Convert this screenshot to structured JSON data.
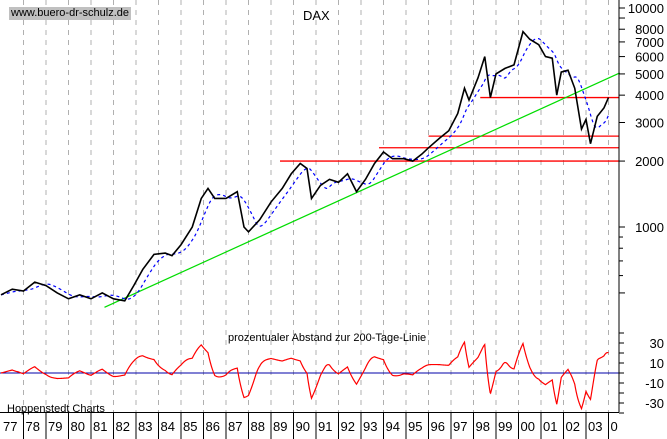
{
  "watermark": "www.buero-dr-schulz.de",
  "chart_data": [
    {
      "type": "line",
      "title": "DAX",
      "y_scale": "log",
      "ylim": [
        380,
        11000
      ],
      "xlim": [
        1977,
        2004.5
      ],
      "grid": "vertical dashed yearly",
      "y_ticks": [
        1000,
        2000,
        3000,
        4000,
        5000,
        6000,
        7000,
        8000,
        10000
      ],
      "x_tick_labels": [
        "77",
        "78",
        "79",
        "80",
        "81",
        "82",
        "83",
        "84",
        "85",
        "86",
        "87",
        "88",
        "89",
        "90",
        "91",
        "92",
        "93",
        "94",
        "95",
        "96",
        "97",
        "98",
        "99",
        "00",
        "01",
        "02",
        "03",
        "0"
      ],
      "series": [
        {
          "role": "index",
          "color": "#000000",
          "points": [
            [
              1977.0,
              490
            ],
            [
              1977.5,
              520
            ],
            [
              1978.0,
              510
            ],
            [
              1978.5,
              560
            ],
            [
              1979.0,
              540
            ],
            [
              1979.5,
              500
            ],
            [
              1980.0,
              470
            ],
            [
              1980.5,
              490
            ],
            [
              1981.0,
              470
            ],
            [
              1981.5,
              500
            ],
            [
              1982.0,
              470
            ],
            [
              1982.5,
              460
            ],
            [
              1982.9,
              540
            ],
            [
              1983.3,
              640
            ],
            [
              1983.8,
              750
            ],
            [
              1984.3,
              760
            ],
            [
              1984.6,
              740
            ],
            [
              1985.0,
              830
            ],
            [
              1985.5,
              1000
            ],
            [
              1985.9,
              1350
            ],
            [
              1986.2,
              1500
            ],
            [
              1986.5,
              1350
            ],
            [
              1987.0,
              1350
            ],
            [
              1987.5,
              1450
            ],
            [
              1987.8,
              1000
            ],
            [
              1988.0,
              950
            ],
            [
              1988.5,
              1080
            ],
            [
              1989.0,
              1300
            ],
            [
              1989.5,
              1500
            ],
            [
              1989.9,
              1750
            ],
            [
              1990.3,
              1950
            ],
            [
              1990.6,
              1850
            ],
            [
              1990.8,
              1350
            ],
            [
              1991.2,
              1550
            ],
            [
              1991.6,
              1650
            ],
            [
              1992.0,
              1600
            ],
            [
              1992.4,
              1750
            ],
            [
              1992.8,
              1450
            ],
            [
              1993.2,
              1650
            ],
            [
              1993.6,
              1950
            ],
            [
              1994.0,
              2200
            ],
            [
              1994.4,
              2050
            ],
            [
              1994.9,
              2050
            ],
            [
              1995.3,
              2000
            ],
            [
              1995.7,
              2150
            ],
            [
              1996.0,
              2300
            ],
            [
              1996.5,
              2550
            ],
            [
              1996.9,
              2750
            ],
            [
              1997.3,
              3300
            ],
            [
              1997.6,
              4300
            ],
            [
              1997.8,
              3800
            ],
            [
              1998.2,
              4800
            ],
            [
              1998.5,
              6000
            ],
            [
              1998.75,
              3900
            ],
            [
              1999.0,
              5000
            ],
            [
              1999.4,
              5300
            ],
            [
              1999.8,
              5500
            ],
            [
              2000.2,
              7800
            ],
            [
              2000.5,
              7200
            ],
            [
              2000.9,
              6800
            ],
            [
              2001.2,
              6000
            ],
            [
              2001.5,
              5900
            ],
            [
              2001.7,
              4000
            ],
            [
              2001.9,
              5100
            ],
            [
              2002.2,
              5200
            ],
            [
              2002.5,
              4300
            ],
            [
              2002.8,
              2800
            ],
            [
              2003.0,
              3100
            ],
            [
              2003.2,
              2400
            ],
            [
              2003.5,
              3200
            ],
            [
              2003.8,
              3500
            ],
            [
              2004.0,
              3900
            ]
          ]
        },
        {
          "role": "200-day moving average",
          "color": "#0000ff",
          "style": "dashed"
        }
      ],
      "trendline": {
        "color": "#00dd00",
        "from": [
          1981.6,
          430
        ],
        "to": [
          2004.5,
          5050
        ]
      },
      "horizontal_lines": [
        {
          "value": 2000,
          "from": 1989.4,
          "color": "#ff0000"
        },
        {
          "value": 2300,
          "from": 1993.8,
          "color": "#ff0000"
        },
        {
          "value": 2600,
          "from": 1996.0,
          "color": "#ff0000"
        },
        {
          "value": 3900,
          "from": 1998.3,
          "color": "#ff0000"
        }
      ]
    },
    {
      "type": "line",
      "title": "prozentualer Abstand zur 200-Tage-Linie",
      "ylim": [
        -40,
        40
      ],
      "y_ticks": [
        30,
        10,
        -10,
        -30
      ],
      "zero_line_color": "#0000aa",
      "series_color": "#ff0000",
      "footer": "Hoppenstedt Charts"
    }
  ]
}
